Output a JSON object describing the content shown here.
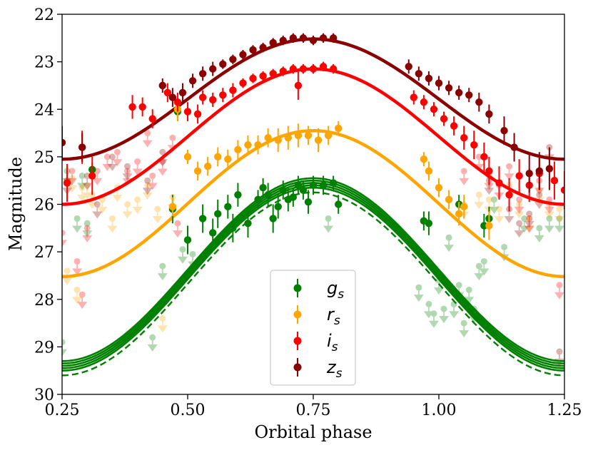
{
  "chart_data": {
    "type": "scatter",
    "title": "",
    "xlabel": "Orbital phase",
    "ylabel": "Magnitude",
    "xlim": [
      0.25,
      1.25
    ],
    "ylim": [
      30,
      22
    ],
    "y_inverted": true,
    "xticks": [
      "0.25",
      "0.50",
      "0.75",
      "1.00",
      "1.25"
    ],
    "yticks": [
      "22",
      "23",
      "24",
      "25",
      "26",
      "27",
      "28",
      "29",
      "30"
    ],
    "xtick_values": [
      0.25,
      0.5,
      0.75,
      1.0,
      1.25
    ],
    "ytick_values": [
      22,
      23,
      24,
      25,
      26,
      27,
      28,
      29,
      30
    ],
    "legend": {
      "placement": "lower-center",
      "entries": [
        {
          "label": "g",
          "sub": "s",
          "color": "#008000"
        },
        {
          "label": "r",
          "sub": "s",
          "color": "#ffa500"
        },
        {
          "label": "i",
          "sub": "s",
          "color": "#ff0000"
        },
        {
          "label": "z",
          "sub": "s",
          "color": "#8b0000"
        }
      ]
    },
    "series": [
      {
        "name": "g_s",
        "color": "#008000",
        "model": {
          "center": 0.75,
          "bright_mag": 25.55,
          "faint_mag": 29.4,
          "band": 0.1
        },
        "model_dashed": {
          "center": 0.75,
          "bright_mag": 25.75,
          "faint_mag": 29.6
        },
        "points": [
          [
            0.31,
            25.27,
            0.15
          ],
          [
            0.48,
            24.05,
            0.2
          ],
          [
            0.47,
            26.1,
            0.3
          ],
          [
            0.5,
            26.75,
            0.3
          ],
          [
            0.53,
            26.3,
            0.3
          ],
          [
            0.55,
            26.6,
            0.3
          ],
          [
            0.56,
            26.2,
            0.3
          ],
          [
            0.58,
            26.05,
            0.25
          ],
          [
            0.59,
            26.5,
            0.3
          ],
          [
            0.6,
            25.8,
            0.25
          ],
          [
            0.62,
            26.4,
            0.3
          ],
          [
            0.64,
            25.9,
            0.2
          ],
          [
            0.65,
            25.65,
            0.2
          ],
          [
            0.66,
            25.8,
            0.25
          ],
          [
            0.67,
            26.3,
            0.3
          ],
          [
            0.68,
            26.05,
            0.25
          ],
          [
            0.69,
            25.7,
            0.2
          ],
          [
            0.7,
            25.9,
            0.25
          ],
          [
            0.71,
            25.85,
            0.2
          ],
          [
            0.72,
            25.6,
            0.2
          ],
          [
            0.73,
            25.7,
            0.2
          ],
          [
            0.74,
            25.95,
            0.25
          ],
          [
            0.75,
            25.6,
            0.2
          ],
          [
            0.77,
            25.6,
            0.2
          ],
          [
            0.79,
            25.55,
            0.15
          ],
          [
            0.8,
            26.0,
            0.2
          ],
          [
            0.97,
            26.35,
            0.2
          ],
          [
            0.98,
            26.4,
            0.25
          ],
          [
            1.04,
            26.0,
            0.2
          ],
          [
            1.09,
            26.45,
            0.25
          ],
          [
            1.1,
            26.3,
            0.25
          ]
        ],
        "upper_limits": [
          [
            0.25,
            28.9
          ],
          [
            0.26,
            25.3
          ],
          [
            0.28,
            26.3
          ],
          [
            0.29,
            25.4
          ],
          [
            0.3,
            26.4
          ],
          [
            0.43,
            28.8
          ],
          [
            0.45,
            27.3
          ],
          [
            0.49,
            26.95
          ],
          [
            0.51,
            27.05
          ],
          [
            0.78,
            26.3
          ],
          [
            0.96,
            27.75
          ],
          [
            0.98,
            28.1
          ],
          [
            0.99,
            28.3
          ],
          [
            1.0,
            27.6
          ],
          [
            1.01,
            28.2
          ],
          [
            1.02,
            26.7
          ],
          [
            1.03,
            28.1
          ],
          [
            1.04,
            27.7
          ],
          [
            1.05,
            28.5
          ],
          [
            1.06,
            27.8
          ],
          [
            1.07,
            28.2
          ],
          [
            1.08,
            27.3
          ],
          [
            1.09,
            27.2
          ],
          [
            1.11,
            25.9
          ],
          [
            1.13,
            26.9
          ],
          [
            1.17,
            26.3
          ],
          [
            1.2,
            26.5
          ],
          [
            1.22,
            26.3
          ],
          [
            1.24,
            26.3
          ]
        ]
      },
      {
        "name": "r_s",
        "color": "#ffa500",
        "model": {
          "center": 0.75,
          "bright_mag": 24.45,
          "faint_mag": 27.52
        },
        "points": [
          [
            0.47,
            26.05,
            0.2
          ],
          [
            0.48,
            24.0,
            0.25
          ],
          [
            0.5,
            25.0,
            0.15
          ],
          [
            0.52,
            25.3,
            0.2
          ],
          [
            0.54,
            25.2,
            0.2
          ],
          [
            0.56,
            25.0,
            0.2
          ],
          [
            0.58,
            25.05,
            0.2
          ],
          [
            0.6,
            24.85,
            0.2
          ],
          [
            0.62,
            24.75,
            0.2
          ],
          [
            0.64,
            24.75,
            0.2
          ],
          [
            0.66,
            24.6,
            0.2
          ],
          [
            0.68,
            24.65,
            0.25
          ],
          [
            0.7,
            24.6,
            0.25
          ],
          [
            0.72,
            24.55,
            0.25
          ],
          [
            0.74,
            24.55,
            0.2
          ],
          [
            0.76,
            24.65,
            0.25
          ],
          [
            0.78,
            24.55,
            0.2
          ],
          [
            0.8,
            24.4,
            0.15
          ],
          [
            0.97,
            25.05,
            0.15
          ],
          [
            0.98,
            25.3,
            0.2
          ],
          [
            1.0,
            25.65,
            0.2
          ],
          [
            1.02,
            25.9,
            0.2
          ],
          [
            1.04,
            26.2,
            0.25
          ],
          [
            1.05,
            26.05,
            0.25
          ],
          [
            1.1,
            26.45,
            0.3
          ]
        ],
        "upper_limits": [
          [
            0.26,
            27.4
          ],
          [
            0.27,
            25.45
          ],
          [
            0.28,
            27.8
          ],
          [
            0.29,
            25.65
          ],
          [
            0.3,
            25.6
          ],
          [
            0.31,
            25.8
          ],
          [
            0.33,
            25.9
          ],
          [
            0.35,
            26.3
          ],
          [
            0.36,
            25.65
          ],
          [
            0.38,
            26.0
          ],
          [
            0.4,
            25.9
          ],
          [
            0.42,
            25.6
          ],
          [
            0.44,
            26.1
          ],
          [
            0.45,
            28.4
          ],
          [
            0.47,
            25.85
          ],
          [
            1.05,
            26.0
          ],
          [
            1.08,
            25.8
          ],
          [
            1.1,
            25.9
          ],
          [
            1.12,
            26.1
          ],
          [
            1.14,
            25.6
          ],
          [
            1.16,
            26.0
          ],
          [
            1.18,
            26.3
          ],
          [
            1.2,
            25.7
          ],
          [
            1.22,
            26.0
          ],
          [
            1.24,
            26.1
          ]
        ]
      },
      {
        "name": "i_s",
        "color": "#ff0000",
        "model": {
          "center": 0.75,
          "bright_mag": 23.15,
          "faint_mag": 26.0
        },
        "points": [
          [
            0.26,
            25.55,
            0.4
          ],
          [
            0.29,
            24.8,
            0.35
          ],
          [
            0.31,
            25.4,
            0.4
          ],
          [
            0.39,
            23.95,
            0.25
          ],
          [
            0.41,
            23.95,
            0.2
          ],
          [
            0.43,
            24.2,
            0.2
          ],
          [
            0.46,
            23.65,
            0.2
          ],
          [
            0.48,
            23.85,
            0.2
          ],
          [
            0.5,
            24.05,
            0.2
          ],
          [
            0.52,
            24.1,
            0.2
          ],
          [
            0.53,
            23.75,
            0.15
          ],
          [
            0.55,
            23.8,
            0.15
          ],
          [
            0.57,
            23.7,
            0.15
          ],
          [
            0.59,
            23.6,
            0.15
          ],
          [
            0.61,
            23.45,
            0.1
          ],
          [
            0.63,
            23.35,
            0.1
          ],
          [
            0.65,
            23.3,
            0.1
          ],
          [
            0.67,
            23.25,
            0.1
          ],
          [
            0.69,
            23.2,
            0.1
          ],
          [
            0.71,
            23.15,
            0.1
          ],
          [
            0.72,
            23.5,
            0.3
          ],
          [
            0.73,
            23.15,
            0.1
          ],
          [
            0.75,
            23.15,
            0.1
          ],
          [
            0.77,
            23.1,
            0.1
          ],
          [
            0.79,
            23.15,
            0.1
          ],
          [
            0.95,
            23.75,
            0.15
          ],
          [
            0.97,
            23.85,
            0.15
          ],
          [
            0.99,
            24.0,
            0.15
          ],
          [
            1.01,
            24.2,
            0.15
          ],
          [
            1.03,
            24.35,
            0.2
          ],
          [
            1.05,
            24.6,
            0.25
          ],
          [
            1.07,
            24.75,
            0.3
          ],
          [
            1.09,
            25.0,
            0.3
          ],
          [
            1.1,
            25.3,
            0.3
          ],
          [
            1.12,
            25.55,
            0.35
          ],
          [
            1.14,
            25.8,
            0.35
          ],
          [
            1.16,
            25.4,
            0.35
          ],
          [
            1.18,
            25.6,
            0.35
          ],
          [
            1.2,
            25.35,
            0.35
          ],
          [
            1.23,
            25.5,
            0.4
          ],
          [
            1.25,
            25.7,
            0.4
          ]
        ],
        "upper_limits": [
          [
            0.25,
            26.6
          ],
          [
            0.27,
            25.3
          ],
          [
            0.28,
            27.2
          ],
          [
            0.29,
            27.9
          ],
          [
            0.3,
            26.5
          ],
          [
            0.32,
            25.3
          ],
          [
            0.34,
            25.0
          ],
          [
            0.36,
            24.9
          ],
          [
            0.38,
            25.3
          ],
          [
            0.4,
            25.1
          ],
          [
            0.42,
            24.5
          ],
          [
            0.43,
            25.4
          ],
          [
            0.45,
            25.1
          ],
          [
            0.47,
            24.6
          ],
          [
            0.48,
            26.4
          ],
          [
            1.05,
            25.3
          ],
          [
            1.08,
            25.0
          ],
          [
            1.1,
            25.4
          ],
          [
            1.12,
            25.6
          ],
          [
            1.14,
            25.2
          ],
          [
            1.16,
            25.9
          ],
          [
            1.18,
            26.3
          ],
          [
            1.2,
            25.5
          ],
          [
            1.22,
            25.9
          ],
          [
            1.24,
            27.7
          ]
        ]
      },
      {
        "name": "z_s",
        "color": "#8b0000",
        "model": {
          "center": 0.75,
          "bright_mag": 22.52,
          "faint_mag": 25.05
        },
        "points": [
          [
            0.25,
            24.7,
            0.35
          ],
          [
            0.29,
            24.8,
            0.3
          ],
          [
            0.45,
            23.5,
            0.15
          ],
          [
            0.47,
            23.75,
            0.2
          ],
          [
            0.49,
            23.65,
            0.2
          ],
          [
            0.51,
            23.4,
            0.15
          ],
          [
            0.53,
            23.25,
            0.15
          ],
          [
            0.55,
            23.15,
            0.15
          ],
          [
            0.57,
            23.05,
            0.1
          ],
          [
            0.59,
            22.95,
            0.1
          ],
          [
            0.61,
            22.85,
            0.1
          ],
          [
            0.63,
            22.75,
            0.1
          ],
          [
            0.65,
            22.7,
            0.1
          ],
          [
            0.67,
            22.6,
            0.1
          ],
          [
            0.69,
            22.55,
            0.1
          ],
          [
            0.71,
            22.5,
            0.1
          ],
          [
            0.73,
            22.5,
            0.1
          ],
          [
            0.75,
            22.55,
            0.1
          ],
          [
            0.77,
            22.5,
            0.1
          ],
          [
            0.79,
            22.5,
            0.1
          ],
          [
            0.94,
            23.1,
            0.15
          ],
          [
            0.96,
            23.25,
            0.15
          ],
          [
            0.98,
            23.35,
            0.15
          ],
          [
            1.0,
            23.45,
            0.15
          ],
          [
            1.02,
            23.55,
            0.15
          ],
          [
            1.04,
            23.65,
            0.15
          ],
          [
            1.06,
            23.7,
            0.15
          ],
          [
            1.08,
            23.85,
            0.2
          ],
          [
            1.1,
            24.1,
            0.2
          ],
          [
            1.13,
            24.45,
            0.3
          ],
          [
            1.15,
            24.8,
            0.3
          ],
          [
            1.18,
            25.35,
            0.4
          ],
          [
            1.2,
            25.3,
            0.4
          ],
          [
            1.22,
            25.25,
            0.45
          ]
        ],
        "upper_limits": [
          [
            0.26,
            25.5
          ],
          [
            0.3,
            25.4
          ],
          [
            0.32,
            26.0
          ],
          [
            0.35,
            25.0
          ],
          [
            0.38,
            25.2
          ],
          [
            0.42,
            25.5
          ],
          [
            0.45,
            24.9
          ],
          [
            1.1,
            25.5
          ],
          [
            1.14,
            26.1
          ],
          [
            1.16,
            26.4
          ],
          [
            1.18,
            26.2
          ],
          [
            1.2,
            25.8
          ],
          [
            1.22,
            24.8
          ],
          [
            1.24,
            29.1
          ]
        ]
      }
    ]
  }
}
